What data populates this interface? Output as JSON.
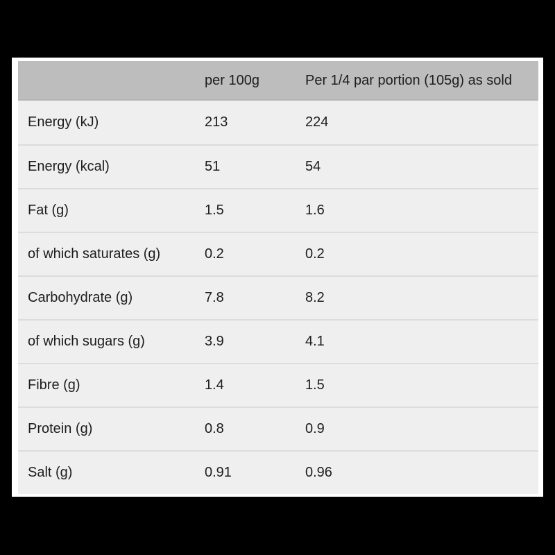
{
  "frame": {
    "background_color": "#000000",
    "panel_color": "#ffffff"
  },
  "table": {
    "header": {
      "background_color": "#bdbdbd",
      "columns": [
        "",
        "per 100g",
        "Per 1/4 par portion (105g) as sold"
      ]
    },
    "row_background_color": "#efefef",
    "divider_color": "#dcdcdc",
    "text_color": "#1d1d1f",
    "rows": [
      {
        "label": "Energy (kJ)",
        "per_100g": "213",
        "per_portion": "224"
      },
      {
        "label": "Energy (kcal)",
        "per_100g": "51",
        "per_portion": "54"
      },
      {
        "label": "Fat (g)",
        "per_100g": "1.5",
        "per_portion": "1.6"
      },
      {
        "label": "of which saturates (g)",
        "per_100g": "0.2",
        "per_portion": "0.2"
      },
      {
        "label": "Carbohydrate (g)",
        "per_100g": "7.8",
        "per_portion": "8.2"
      },
      {
        "label": "of which sugars (g)",
        "per_100g": "3.9",
        "per_portion": "4.1"
      },
      {
        "label": "Fibre (g)",
        "per_100g": "1.4",
        "per_portion": "1.5"
      },
      {
        "label": "Protein (g)",
        "per_100g": "0.8",
        "per_portion": "0.9"
      },
      {
        "label": "Salt (g)",
        "per_100g": "0.91",
        "per_portion": "0.96"
      }
    ]
  }
}
